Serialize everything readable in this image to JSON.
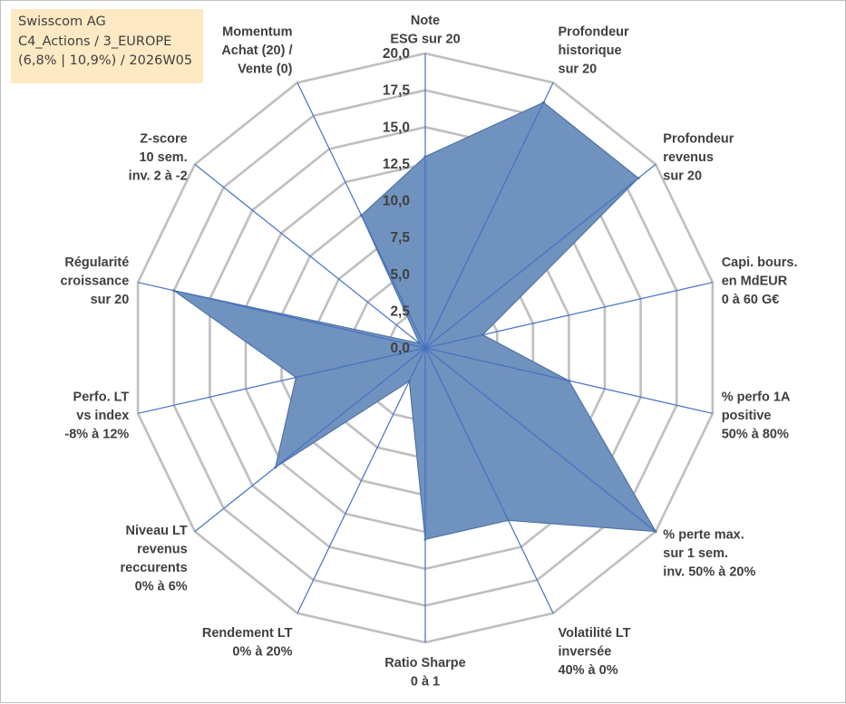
{
  "info": {
    "company": "Swisscom AG",
    "portfolio": "C4_Actions / 3_EUROPE",
    "stats": "(6,8% | 10,9%) / 2026W05"
  },
  "colors": {
    "fill": "#7092be",
    "fill_stroke": "#4f73a5",
    "spoke": "#4472c4",
    "grid": "#bfbfbf",
    "text": "#404040",
    "info_bg": "#fde9c3"
  },
  "chart_data": {
    "type": "radar",
    "scale": {
      "min": 0,
      "max": 20,
      "step": 2.5
    },
    "ticks": [
      "0,0",
      "2,5",
      "5,0",
      "7,5",
      "10,0",
      "12,5",
      "15,0",
      "17,5",
      "20,0"
    ],
    "axes": [
      {
        "label": [
          "Note",
          "ESG sur 20"
        ],
        "value": 13.0
      },
      {
        "label": [
          "Profondeur",
          "historique",
          "sur 20"
        ],
        "value": 18.5
      },
      {
        "label": [
          "Profondeur",
          "revenus",
          "sur 20"
        ],
        "value": 18.5
      },
      {
        "label": [
          "Capi. bours.",
          "en MdEUR",
          "0 à 60 G€"
        ],
        "value": 4.0
      },
      {
        "label": [
          "% perfo 1A",
          "positive",
          "50% à 80%"
        ],
        "value": 10.0
      },
      {
        "label": [
          "% perte max.",
          "sur 1 sem.",
          "inv. 50% à 20%"
        ],
        "value": 20.0
      },
      {
        "label": [
          "Volatilité LT",
          "inversée",
          "40% à 0%"
        ],
        "value": 13.0
      },
      {
        "label": [
          "Ratio Sharpe",
          "0 à 1"
        ],
        "value": 13.0
      },
      {
        "label": [
          "Rendement LT",
          "0% à 20%"
        ],
        "value": 2.5
      },
      {
        "label": [
          "Niveau LT",
          "revenus",
          "reccurents",
          "0% à 6%"
        ],
        "value": 13.0
      },
      {
        "label": [
          "Perfo. LT",
          "vs index",
          "-8% à 12%"
        ],
        "value": 9.0
      },
      {
        "label": [
          "Régularité",
          "croissance",
          "sur 20"
        ],
        "value": 17.5
      },
      {
        "label": [
          "Z-score",
          "10 sem.",
          "inv. 2 à -2"
        ],
        "value": 0.5
      },
      {
        "label": [
          "Momentum",
          "Achat (20) /",
          "Vente (0)"
        ],
        "value": 10.0
      }
    ]
  }
}
